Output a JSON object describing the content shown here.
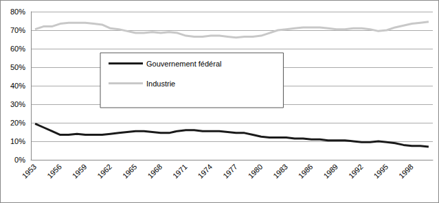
{
  "chart_data": {
    "type": "line",
    "categories": [
      "1953",
      null,
      null,
      "1956",
      null,
      null,
      "1959",
      null,
      null,
      "1962",
      null,
      null,
      "1965",
      null,
      null,
      "1968",
      null,
      null,
      "1971",
      null,
      null,
      "1974",
      null,
      null,
      "1977",
      null,
      null,
      "1980",
      null,
      null,
      "1983",
      null,
      null,
      "1986",
      null,
      null,
      "1989",
      null,
      null,
      "1992",
      null,
      null,
      "1995",
      null,
      null,
      "1998",
      null,
      null
    ],
    "series": [
      {
        "name": "Gouvernement fédéral",
        "color": "#1a1a1a",
        "values": [
          19.5,
          17.5,
          15.5,
          13.5,
          13.5,
          14,
          13.5,
          13.5,
          13.5,
          14,
          14.5,
          15,
          15.5,
          15.5,
          15,
          14.5,
          14.5,
          15.5,
          16,
          16,
          15.5,
          15.5,
          15.5,
          15,
          14.5,
          14.5,
          13.5,
          12.5,
          12,
          12,
          12,
          11.5,
          11.5,
          11,
          11,
          10.5,
          10.5,
          10.5,
          10,
          9.5,
          9.5,
          10,
          9.5,
          9,
          8,
          7.5,
          7.5,
          7
        ]
      },
      {
        "name": "Industrie",
        "color": "#c8c8c8",
        "values": [
          70.5,
          72,
          72,
          73.5,
          74,
          74,
          74,
          73.5,
          73,
          71,
          70.5,
          69.5,
          68.5,
          68.5,
          69,
          68.5,
          69,
          68.5,
          67,
          66.5,
          66.5,
          67,
          67,
          66.5,
          66,
          66.5,
          66.5,
          67,
          68.5,
          70,
          70.5,
          71,
          71.5,
          71.5,
          71.5,
          71,
          70.5,
          70.5,
          71,
          71,
          70.5,
          69.5,
          70,
          71.5,
          72.5,
          73.5,
          74,
          74.5
        ]
      }
    ],
    "ylim": [
      0,
      80
    ],
    "yticks": [
      {
        "value": 0,
        "label": "0%"
      },
      {
        "value": 10,
        "label": "10%"
      },
      {
        "value": 20,
        "label": "20%"
      },
      {
        "value": 30,
        "label": "30%"
      },
      {
        "value": 40,
        "label": "40%"
      },
      {
        "value": 50,
        "label": "50%"
      },
      {
        "value": 60,
        "label": "60%"
      },
      {
        "value": 70,
        "label": "70%"
      },
      {
        "value": 80,
        "label": "80%"
      }
    ],
    "grid": true,
    "legend": "inside"
  }
}
